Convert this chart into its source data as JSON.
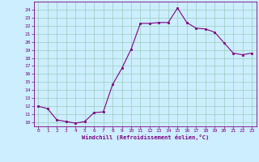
{
  "x": [
    0,
    1,
    2,
    3,
    4,
    5,
    6,
    7,
    8,
    9,
    10,
    11,
    12,
    13,
    14,
    15,
    16,
    17,
    18,
    19,
    20,
    21,
    22,
    23
  ],
  "y": [
    12.0,
    11.7,
    10.3,
    10.1,
    9.9,
    10.1,
    11.2,
    11.3,
    14.7,
    16.7,
    19.1,
    22.3,
    22.3,
    22.4,
    22.4,
    24.2,
    22.4,
    21.7,
    21.6,
    21.2,
    19.9,
    18.6,
    18.4,
    18.6
  ],
  "line_color": "#800080",
  "marker_color": "#800080",
  "bg_color": "#cceeff",
  "grid_color": "#99ccbb",
  "xlabel": "Windchill (Refroidissement éolien,°C)",
  "ylim": [
    9.5,
    25.0
  ],
  "xlim": [
    -0.5,
    23.5
  ],
  "yticks": [
    10,
    11,
    12,
    13,
    14,
    15,
    16,
    17,
    18,
    19,
    20,
    21,
    22,
    23,
    24
  ],
  "xticks": [
    0,
    1,
    2,
    3,
    4,
    5,
    6,
    7,
    8,
    9,
    10,
    11,
    12,
    13,
    14,
    15,
    16,
    17,
    18,
    19,
    20,
    21,
    22,
    23
  ],
  "xlabel_color": "#800080",
  "tick_color": "#800080",
  "font_family": "monospace"
}
